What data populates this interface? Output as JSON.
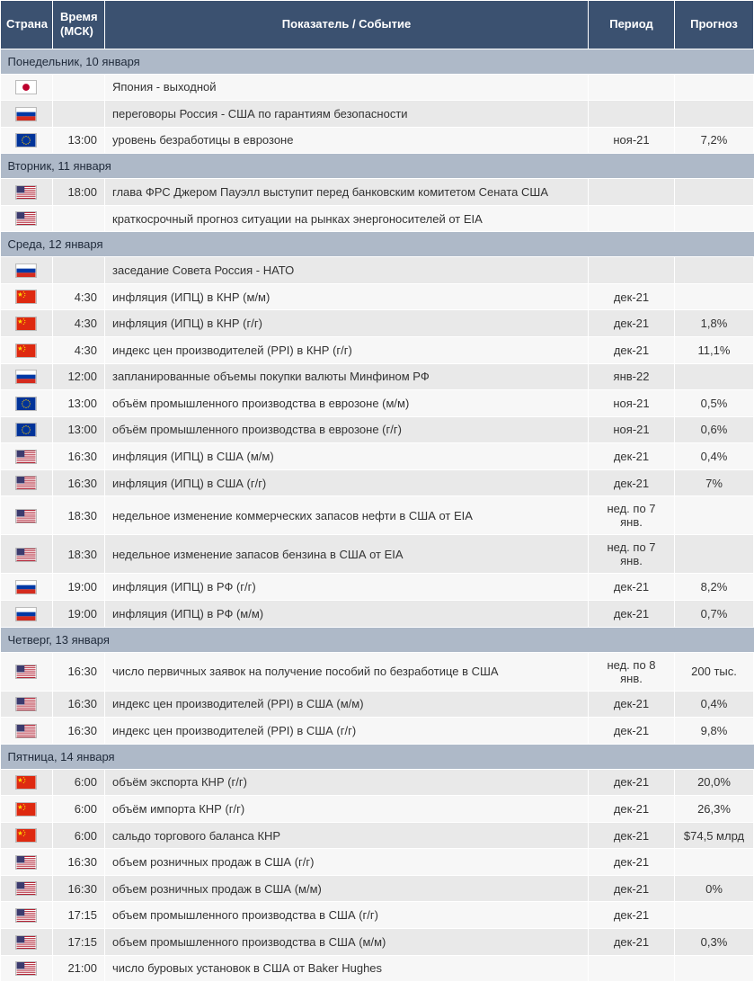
{
  "header": {
    "country": "Страна",
    "time": "Время (МСК)",
    "event": "Показатель / Событие",
    "period": "Период",
    "forecast": "Прогноз"
  },
  "colors": {
    "header_bg": "#3b5170",
    "header_fg": "#ffffff",
    "dayhdr_bg": "#aeb9c8",
    "row_alt_bg": "#e9e9e9",
    "row_lite_bg": "#f7f7f7",
    "text": "#333333"
  },
  "flags": {
    "jp": "japan-flag",
    "ru": "russia-flag",
    "eu": "eu-flag",
    "us": "us-flag",
    "cn": "china-flag"
  },
  "days": [
    {
      "title": "Понедельник, 10 января",
      "rows": [
        {
          "flag": "jp",
          "time": "",
          "event": "Япония - выходной",
          "period": "",
          "forecast": ""
        },
        {
          "flag": "ru",
          "time": "",
          "event": "переговоры Россия - США по гарантиям безопасности",
          "period": "",
          "forecast": ""
        },
        {
          "flag": "eu",
          "time": "13:00",
          "event": "уровень безработицы в еврозоне",
          "period": "ноя-21",
          "forecast": "7,2%"
        }
      ]
    },
    {
      "title": "Вторник, 11 января",
      "rows": [
        {
          "flag": "us",
          "time": "18:00",
          "event": "глава ФРС Джером Пауэлл выступит перед банковским комитетом Сената США",
          "period": "",
          "forecast": ""
        },
        {
          "flag": "us",
          "time": "",
          "event": "краткосрочный прогноз ситуации на рынках энергоносителей от EIA",
          "period": "",
          "forecast": ""
        }
      ]
    },
    {
      "title": "Среда, 12 января",
      "rows": [
        {
          "flag": "ru",
          "time": "",
          "event": "заседание Совета Россия - НАТО",
          "period": "",
          "forecast": ""
        },
        {
          "flag": "cn",
          "time": "4:30",
          "event": "инфляция (ИПЦ) в КНР (м/м)",
          "period": "дек-21",
          "forecast": ""
        },
        {
          "flag": "cn",
          "time": "4:30",
          "event": "инфляция (ИПЦ) в КНР (г/г)",
          "period": "дек-21",
          "forecast": "1,8%"
        },
        {
          "flag": "cn",
          "time": "4:30",
          "event": "индекс цен производителей (PPI) в КНР (г/г)",
          "period": "дек-21",
          "forecast": "11,1%"
        },
        {
          "flag": "ru",
          "time": "12:00",
          "event": "запланированные объемы покупки валюты Минфином РФ",
          "period": "янв-22",
          "forecast": ""
        },
        {
          "flag": "eu",
          "time": "13:00",
          "event": "объём промышленного производства в еврозоне (м/м)",
          "period": "ноя-21",
          "forecast": "0,5%"
        },
        {
          "flag": "eu",
          "time": "13:00",
          "event": "объём промышленного производства в еврозоне (г/г)",
          "period": "ноя-21",
          "forecast": "0,6%"
        },
        {
          "flag": "us",
          "time": "16:30",
          "event": "инфляция (ИПЦ) в США (м/м)",
          "period": "дек-21",
          "forecast": "0,4%"
        },
        {
          "flag": "us",
          "time": "16:30",
          "event": "инфляция (ИПЦ) в США (г/г)",
          "period": "дек-21",
          "forecast": "7%"
        },
        {
          "flag": "us",
          "time": "18:30",
          "event": "недельное изменение коммерческих запасов нефти в США от EIA",
          "period": "нед. по 7 янв.",
          "forecast": ""
        },
        {
          "flag": "us",
          "time": "18:30",
          "event": "недельное изменение запасов бензина в США от EIA",
          "period": "нед. по 7 янв.",
          "forecast": ""
        },
        {
          "flag": "ru",
          "time": "19:00",
          "event": "инфляция (ИПЦ) в РФ (г/г)",
          "period": "дек-21",
          "forecast": "8,2%"
        },
        {
          "flag": "ru",
          "time": "19:00",
          "event": "инфляция (ИПЦ) в РФ (м/м)",
          "period": "дек-21",
          "forecast": "0,7%"
        }
      ]
    },
    {
      "title": "Четверг, 13 января",
      "rows": [
        {
          "flag": "us",
          "time": "16:30",
          "event": "число первичных заявок на получение пособий по безработице в США",
          "period": "нед. по 8 янв.",
          "forecast": "200 тыс."
        },
        {
          "flag": "us",
          "time": "16:30",
          "event": "индекс цен производителей (PPI) в США (м/м)",
          "period": "дек-21",
          "forecast": "0,4%"
        },
        {
          "flag": "us",
          "time": "16:30",
          "event": "индекс цен производителей (PPI) в США (г/г)",
          "period": "дек-21",
          "forecast": "9,8%"
        }
      ]
    },
    {
      "title": "Пятница, 14 января",
      "rows": [
        {
          "flag": "cn",
          "time": "6:00",
          "event": "объём экспорта КНР (г/г)",
          "period": "дек-21",
          "forecast": "20,0%"
        },
        {
          "flag": "cn",
          "time": "6:00",
          "event": "объём импорта КНР (г/г)",
          "period": "дек-21",
          "forecast": "26,3%"
        },
        {
          "flag": "cn",
          "time": "6:00",
          "event": "сальдо торгового баланса КНР",
          "period": "дек-21",
          "forecast": "$74,5 млрд"
        },
        {
          "flag": "us",
          "time": "16:30",
          "event": "объем розничных продаж в США (г/г)",
          "period": "дек-21",
          "forecast": ""
        },
        {
          "flag": "us",
          "time": "16:30",
          "event": "объем розничных продаж в США (м/м)",
          "period": "дек-21",
          "forecast": "0%"
        },
        {
          "flag": "us",
          "time": "17:15",
          "event": "объем промышленного производства в США (г/г)",
          "period": "дек-21",
          "forecast": ""
        },
        {
          "flag": "us",
          "time": "17:15",
          "event": "объем промышленного производства в США (м/м)",
          "period": "дек-21",
          "forecast": "0,3%"
        },
        {
          "flag": "us",
          "time": "21:00",
          "event": "число буровых установок в США от Baker Hughes",
          "period": "",
          "forecast": ""
        }
      ]
    }
  ]
}
